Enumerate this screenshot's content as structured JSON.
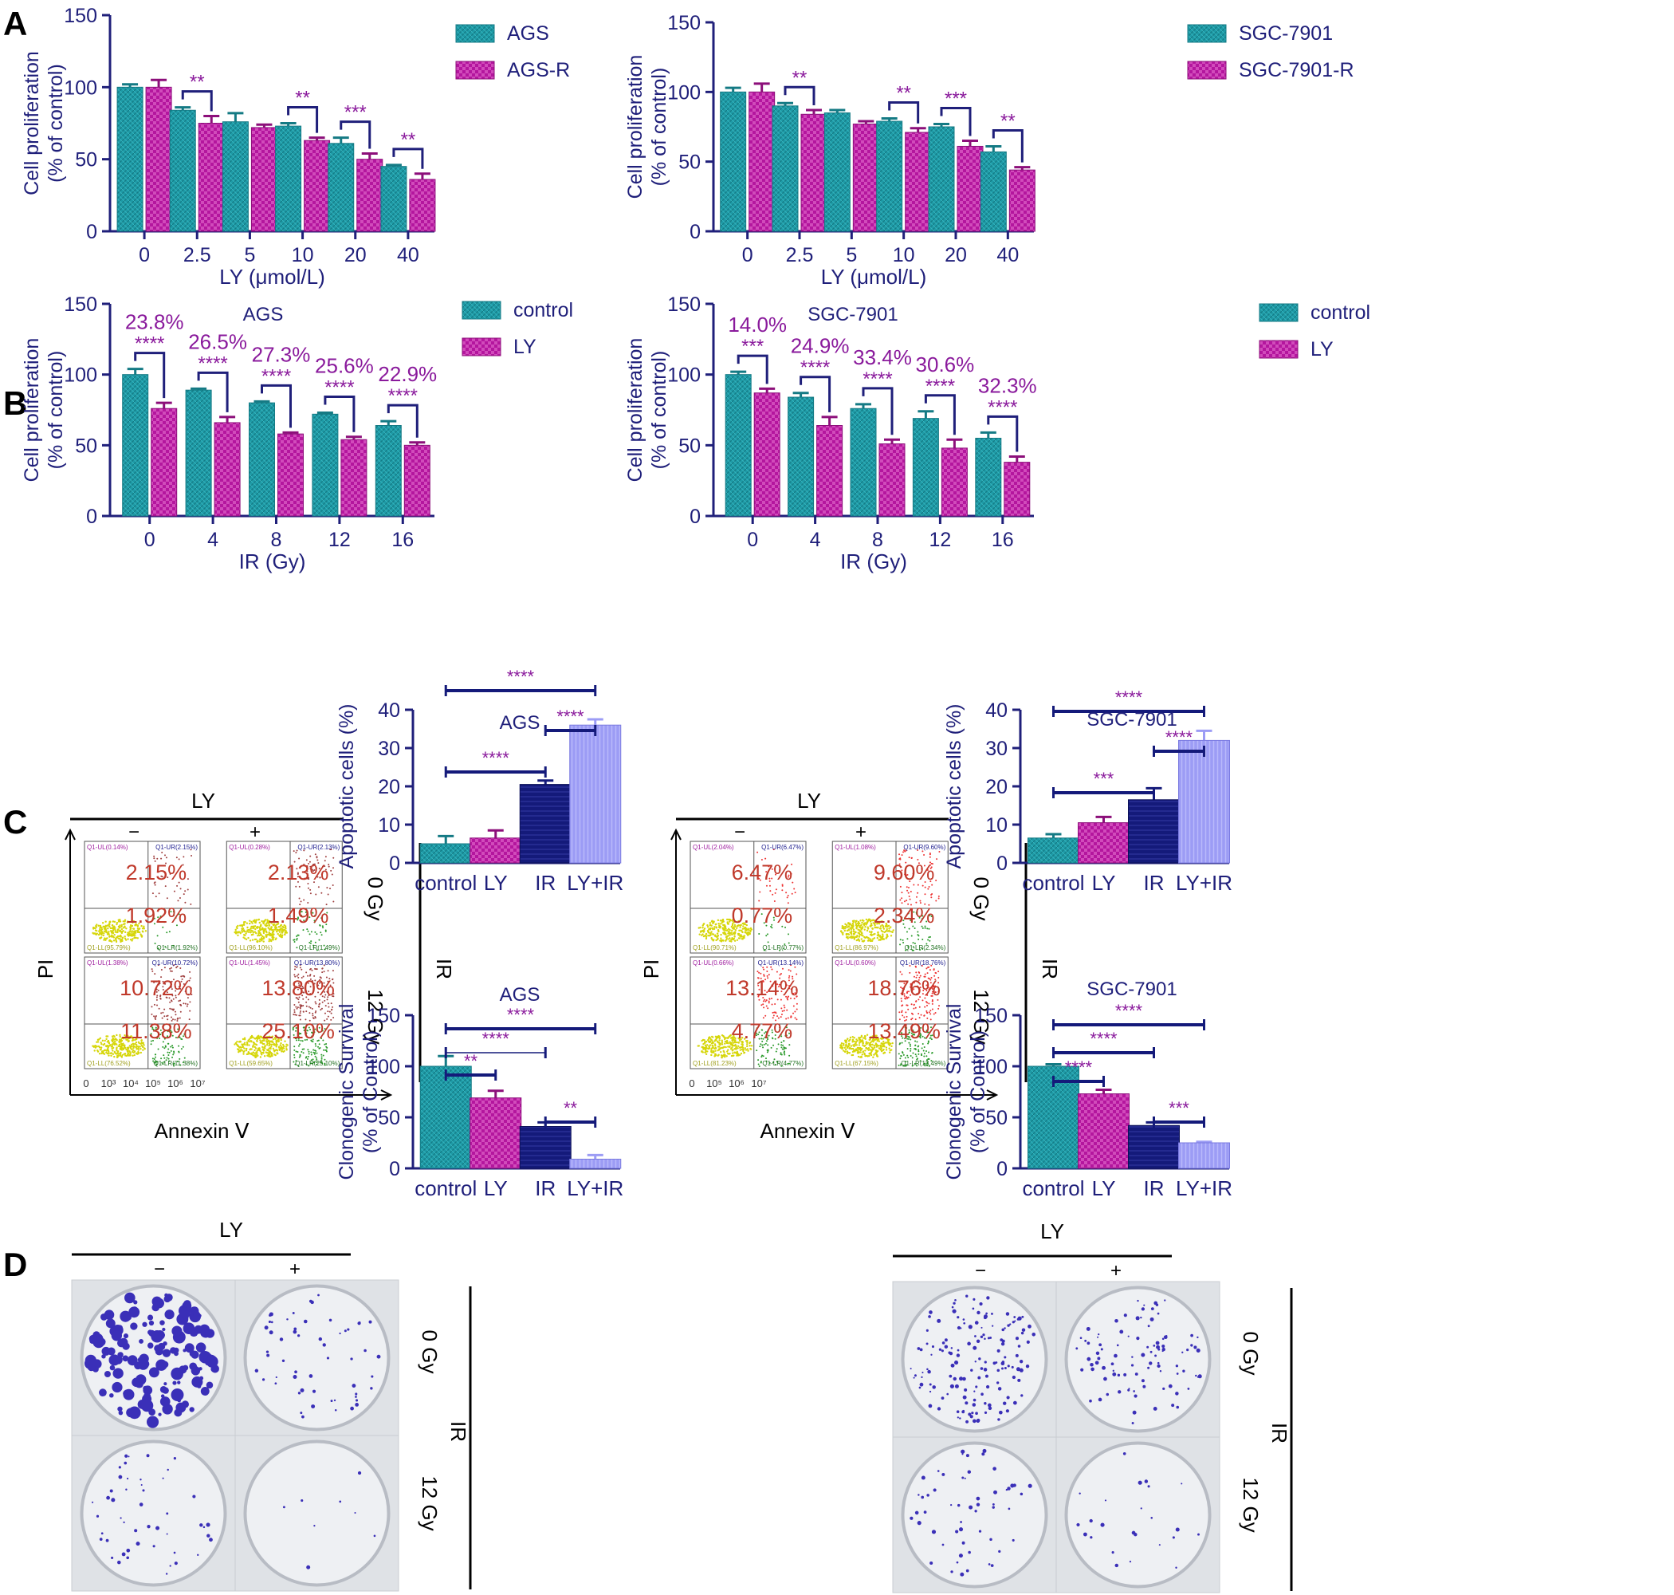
{
  "colors": {
    "axis": "#1f1f7a",
    "teal": "#1e9aa6",
    "magenta": "#b4169e",
    "navy": "#141a7a",
    "lavender": "#9c9cf5",
    "sig": "#8a1a9c",
    "pct_purple": "#8a1a9c",
    "flow_pct": "#c0392b",
    "title": "#1f1f7a"
  },
  "panel_letters": [
    "A",
    "B",
    "C",
    "D"
  ],
  "chart_data": [
    {
      "id": "A-AGS",
      "type": "bar",
      "ylabel": [
        "Cell proliferation",
        "(% of control)"
      ],
      "xlabel": "LY (μmol/L)",
      "categories": [
        "0",
        "2.5",
        "5",
        "10",
        "20",
        "40"
      ],
      "ylim": [
        0,
        150
      ],
      "yticks": [
        "0",
        "50",
        "100",
        "150"
      ],
      "legend_position": "top-right",
      "series": [
        {
          "name": "AGS",
          "values": [
            100,
            84,
            76,
            73,
            61,
            45
          ],
          "errors": [
            2,
            2,
            6,
            2,
            4,
            1
          ]
        },
        {
          "name": "AGS-R",
          "values": [
            100,
            75,
            72,
            63,
            50,
            36
          ],
          "errors": [
            5,
            5,
            2,
            2,
            4,
            4
          ]
        }
      ],
      "significance": [
        "",
        "**",
        "",
        "**",
        "***",
        "**"
      ]
    },
    {
      "id": "A-SGC",
      "type": "bar",
      "ylabel": [
        "Cell proliferation",
        "(% of control)"
      ],
      "xlabel": "LY (μmol/L)",
      "categories": [
        "0",
        "2.5",
        "5",
        "10",
        "20",
        "40"
      ],
      "ylim": [
        0,
        150
      ],
      "yticks": [
        "0",
        "50",
        "100",
        "150"
      ],
      "legend_position": "top-right",
      "series": [
        {
          "name": "SGC-7901",
          "values": [
            100,
            90,
            85,
            79,
            75,
            57
          ],
          "errors": [
            3,
            2,
            2,
            2,
            2,
            4
          ]
        },
        {
          "name": "SGC-7901-R",
          "values": [
            100,
            84,
            77,
            71,
            61,
            44
          ],
          "errors": [
            6,
            3,
            2,
            3,
            4,
            2
          ]
        }
      ],
      "significance": [
        "",
        "**",
        "",
        "**",
        "***",
        "**"
      ]
    },
    {
      "id": "B-AGS",
      "type": "bar",
      "title": "AGS",
      "ylabel": [
        "Cell proliferation",
        "(% of control)"
      ],
      "xlabel": "IR (Gy)",
      "categories": [
        "0",
        "4",
        "8",
        "12",
        "16"
      ],
      "ylim": [
        0,
        150
      ],
      "yticks": [
        "0",
        "50",
        "100",
        "150"
      ],
      "legend_position": "top-right",
      "series": [
        {
          "name": "control",
          "values": [
            100,
            89,
            80,
            72,
            64
          ],
          "errors": [
            4,
            1,
            1,
            1,
            3
          ]
        },
        {
          "name": "LY",
          "values": [
            76,
            66,
            58,
            54,
            50
          ],
          "errors": [
            4,
            4,
            1,
            2,
            2
          ]
        }
      ],
      "significance": [
        "****",
        "****",
        "****",
        "****",
        "****"
      ],
      "percent_labels": [
        "23.8%",
        "26.5%",
        "27.3%",
        "25.6%",
        "22.9%"
      ]
    },
    {
      "id": "B-SGC",
      "type": "bar",
      "title": "SGC-7901",
      "ylabel": [
        "Cell proliferation",
        "(% of control)"
      ],
      "xlabel": "IR (Gy)",
      "categories": [
        "0",
        "4",
        "8",
        "12",
        "16"
      ],
      "ylim": [
        0,
        150
      ],
      "yticks": [
        "0",
        "50",
        "100",
        "150"
      ],
      "legend_position": "top-right",
      "series": [
        {
          "name": "control",
          "values": [
            100,
            84,
            76,
            69,
            55
          ],
          "errors": [
            2,
            3,
            3,
            5,
            4
          ]
        },
        {
          "name": "LY",
          "values": [
            87,
            64,
            51,
            48,
            38
          ],
          "errors": [
            3,
            6,
            3,
            6,
            4
          ]
        }
      ],
      "significance": [
        "***",
        "****",
        "****",
        "****",
        "****"
      ],
      "percent_labels": [
        "14.0%",
        "24.9%",
        "33.4%",
        "30.6%",
        "32.3%"
      ]
    },
    {
      "id": "C-AGS",
      "type": "bar",
      "title": "AGS",
      "ylabel": [
        "Apoptotic cells (%)"
      ],
      "categories": [
        "control",
        "LY",
        "IR",
        "LY+IR"
      ],
      "ylim": [
        0,
        40
      ],
      "yticks": [
        "0",
        "10",
        "20",
        "30",
        "40"
      ],
      "values": [
        5,
        6.5,
        20.5,
        36
      ],
      "errors": [
        2,
        2,
        1,
        1.5
      ],
      "brackets": [
        {
          "from": 0,
          "to": 3,
          "label": "****"
        },
        {
          "from": 2,
          "to": 3,
          "label": "****"
        },
        {
          "from": 0,
          "to": 2,
          "label": "****"
        }
      ]
    },
    {
      "id": "C-SGC",
      "type": "bar",
      "title": "SGC-7901",
      "ylabel": [
        "Apoptotic cells (%)"
      ],
      "categories": [
        "control",
        "LY",
        "IR",
        "LY+IR"
      ],
      "ylim": [
        0,
        40
      ],
      "yticks": [
        "0",
        "10",
        "20",
        "30",
        "40"
      ],
      "values": [
        6.5,
        10.5,
        16.5,
        32
      ],
      "errors": [
        1,
        1.5,
        3,
        2.5
      ],
      "brackets": [
        {
          "from": 0,
          "to": 3,
          "label": "****"
        },
        {
          "from": 2,
          "to": 3,
          "label": "****"
        },
        {
          "from": 0,
          "to": 2,
          "label": "***"
        }
      ]
    },
    {
      "id": "D-AGS",
      "type": "bar",
      "title": "AGS",
      "ylabel": [
        "Clonogenic Survival",
        "(% of Control)"
      ],
      "categories": [
        "control",
        "LY",
        "IR",
        "LY+IR"
      ],
      "ylim": [
        0,
        150
      ],
      "yticks": [
        "0",
        "50",
        "100",
        "150"
      ],
      "values": [
        100,
        69,
        41,
        9
      ],
      "errors": [
        10,
        7,
        4,
        4
      ],
      "brackets": [
        {
          "from": 0,
          "to": 3,
          "label": "****"
        },
        {
          "from": 0,
          "to": 2,
          "label": "****"
        },
        {
          "from": 0,
          "to": 1,
          "label": "**"
        },
        {
          "from": 2,
          "to": 3,
          "label": "**"
        }
      ]
    },
    {
      "id": "D-SGC",
      "type": "bar",
      "title": "SGC-7901",
      "ylabel": [
        "Clonogenic Survival",
        "(% of Control)"
      ],
      "categories": [
        "control",
        "LY",
        "IR",
        "LY+IR"
      ],
      "ylim": [
        0,
        150
      ],
      "yticks": [
        "0",
        "50",
        "100",
        "150"
      ],
      "values": [
        100,
        73,
        42,
        25
      ],
      "errors": [
        2,
        4,
        3,
        1
      ],
      "brackets": [
        {
          "from": 0,
          "to": 3,
          "label": "****"
        },
        {
          "from": 0,
          "to": 2,
          "label": "****"
        },
        {
          "from": 0,
          "to": 1,
          "label": "****"
        },
        {
          "from": 2,
          "to": 3,
          "label": "***"
        }
      ]
    }
  ],
  "flow": [
    {
      "id": "flow-AGS",
      "top_label": "LY",
      "minus": "−",
      "plus": "+",
      "y_axis": "PI",
      "x_axis": "Annexin Ⅴ",
      "side_group": "IR",
      "row_labels": [
        "0 Gy",
        "12 Gy"
      ],
      "x_ticks": [
        "0",
        "10³",
        "10⁴",
        "10⁵",
        "10⁶",
        "10⁷"
      ],
      "quadrants": [
        {
          "ul": "Q1-UL(0.14%)",
          "ur": "Q1-UR(2.15%)",
          "ll": "Q1-LL(95.79%)",
          "lr": "Q1-LR(1.92%)",
          "big_ur": "2.15%",
          "big_lr": "1.92%"
        },
        {
          "ul": "Q1-UL(0.28%)",
          "ur": "Q1-UR(2.13%)",
          "ll": "Q1-LL(96.10%)",
          "lr": "Q1-LR(1.49%)",
          "big_ur": "2.13%",
          "big_lr": "1.49%"
        },
        {
          "ul": "Q1-UL(1.38%)",
          "ur": "Q1-UR(10.72%)",
          "ll": "Q1-LL(76.52%)",
          "lr": "Q1-LR(11.38%)",
          "big_ur": "10.72%",
          "big_lr": "11.38%"
        },
        {
          "ul": "Q1-UL(1.45%)",
          "ur": "Q1-UR(13.80%)",
          "ll": "Q1-LL(59.65%)",
          "lr": "Q1-LR(25.10%)",
          "big_ur": "13.80%",
          "big_lr": "25.10%"
        }
      ]
    },
    {
      "id": "flow-SGC",
      "top_label": "LY",
      "minus": "−",
      "plus": "+",
      "y_axis": "PI",
      "x_axis": "Annexin Ⅴ",
      "side_group": "IR",
      "row_labels": [
        "0 Gy",
        "12 Gy"
      ],
      "x_ticks": [
        "0",
        "10⁵",
        "10⁶",
        "10⁷"
      ],
      "quadrants": [
        {
          "ul": "Q1-UL(2.04%)",
          "ur": "Q1-UR(6.47%)",
          "ll": "Q1-LL(90.71%)",
          "lr": "Q1-LR(0.77%)",
          "big_ur": "6.47%",
          "big_lr": "0.77%"
        },
        {
          "ul": "Q1-UL(1.08%)",
          "ur": "Q1-UR(9.60%)",
          "ll": "Q1-LL(86.97%)",
          "lr": "Q1-LR(2.34%)",
          "big_ur": "9.60%",
          "big_lr": "2.34%"
        },
        {
          "ul": "Q1-UL(0.66%)",
          "ur": "Q1-UR(13.14%)",
          "ll": "Q1-LL(81.23%)",
          "lr": "Q1-LR(4.77%)",
          "big_ur": "13.14%",
          "big_lr": "4.77%"
        },
        {
          "ul": "Q1-UL(0.60%)",
          "ur": "Q1-UR(18.76%)",
          "ll": "Q1-LL(67.15%)",
          "lr": "Q1-LR(13.49%)",
          "big_ur": "18.76%",
          "big_lr": "13.49%"
        }
      ]
    }
  ],
  "plates": [
    {
      "id": "plates-AGS",
      "top_label": "LY",
      "minus": "−",
      "plus": "+",
      "side_group": "IR",
      "row_labels": [
        "0 Gy",
        "12 Gy"
      ],
      "colony_density": [
        1.0,
        0.35,
        0.3,
        0.05
      ]
    },
    {
      "id": "plates-SGC",
      "top_label": "LY",
      "minus": "−",
      "plus": "+",
      "side_group": "IR",
      "row_labels": [
        "0 Gy",
        "12 Gy"
      ],
      "colony_density": [
        1.0,
        0.6,
        0.35,
        0.15
      ]
    }
  ]
}
